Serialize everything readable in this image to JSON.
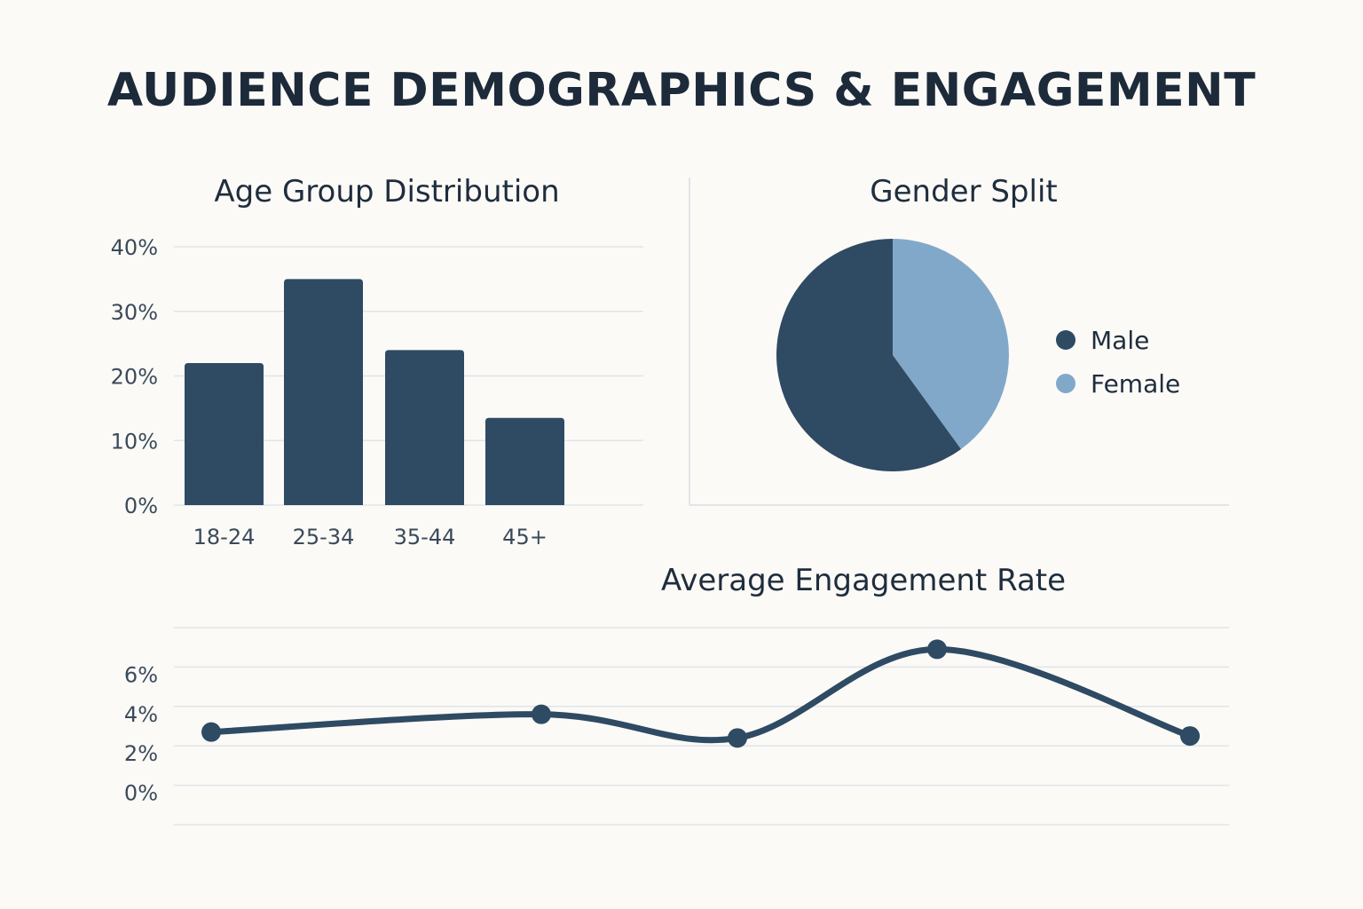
{
  "title": "AUDIENCE DEMOGRAPHICS & ENGAGEMENT",
  "colors": {
    "primary": "#2f4a63",
    "secondary": "#82a8c9",
    "grid": "#e2e4e8",
    "background": "#fbfaf7"
  },
  "chart_data": [
    {
      "type": "bar",
      "title": "Age Group Distribution",
      "categories": [
        "18-24",
        "25-34",
        "35-44",
        "45+"
      ],
      "values": [
        22,
        35,
        24,
        13.5
      ],
      "ylim": [
        0,
        40
      ],
      "yticks": [
        0,
        10,
        20,
        30,
        40
      ],
      "ytick_labels": [
        "0%",
        "10%",
        "20%",
        "30%",
        "40%"
      ],
      "grid": true,
      "xlabel": "",
      "ylabel": ""
    },
    {
      "type": "pie",
      "title": "Gender Split",
      "slices": [
        {
          "label": "Male",
          "value": 60,
          "color": "#2f4a63"
        },
        {
          "label": "Female",
          "value": 40,
          "color": "#82a8c9"
        }
      ],
      "legend": "right"
    },
    {
      "type": "line",
      "title": "Average Engagement Rate",
      "values": [
        2.7,
        3.6,
        2.4,
        6.9,
        2.5
      ],
      "ylim": [
        -2,
        8
      ],
      "yticks": [
        0,
        2,
        4,
        6
      ],
      "ytick_labels": [
        "0%",
        "2%",
        "4%",
        "6%"
      ],
      "smooth": true,
      "markers": true,
      "grid": true,
      "xlabel": "",
      "ylabel": ""
    }
  ]
}
